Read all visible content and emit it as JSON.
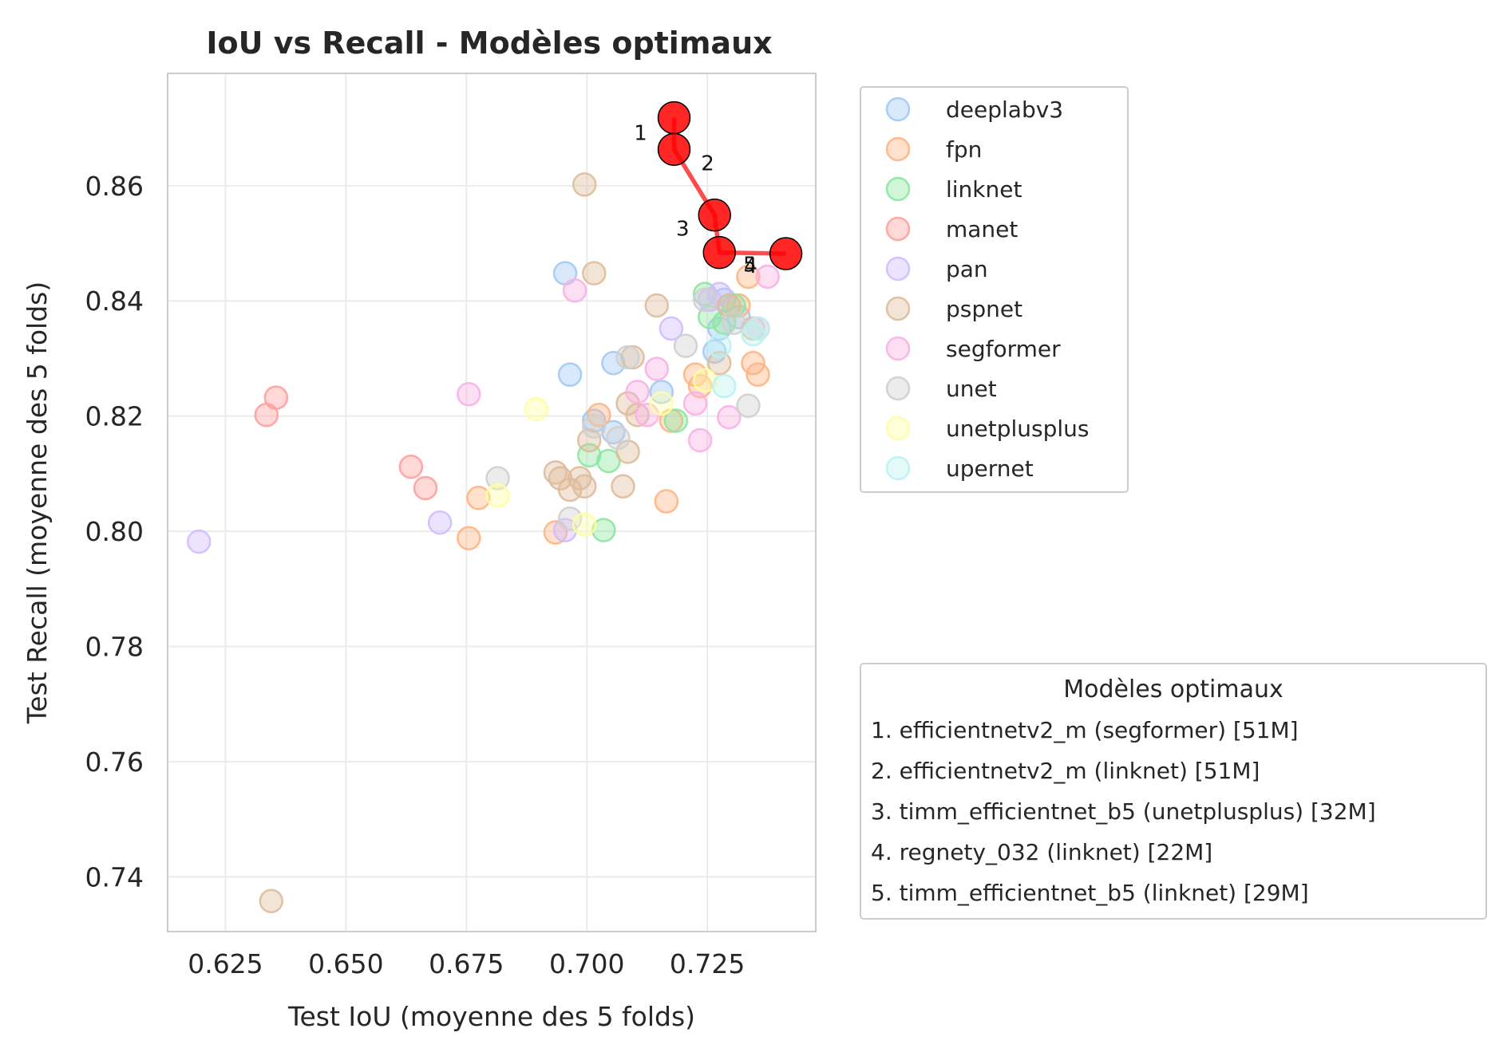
{
  "chart_data": {
    "type": "scatter",
    "title": "IoU vs Recall - Modèles optimaux",
    "xlabel": "Test IoU (moyenne des 5 folds)",
    "ylabel": "Test Recall (moyenne des 5 folds)",
    "xlim": [
      0.613,
      0.7475
    ],
    "ylim": [
      0.7305,
      0.8795
    ],
    "xticks": [
      "0.625",
      "0.650",
      "0.675",
      "0.700",
      "0.725"
    ],
    "yticks": [
      "0.74",
      "0.76",
      "0.78",
      "0.80",
      "0.82",
      "0.84",
      "0.86"
    ],
    "grid": true,
    "legend_position": "upper-right-outside",
    "series": [
      {
        "name": "deeplabv3",
        "color": "#a1c9f4",
        "points": [
          [
            0.6955,
            0.8448
          ],
          [
            0.6965,
            0.8272
          ],
          [
            0.7055,
            0.8292
          ],
          [
            0.7055,
            0.8172
          ],
          [
            0.7155,
            0.8242
          ],
          [
            0.7265,
            0.8312
          ],
          [
            0.7285,
            0.8402
          ],
          [
            0.7315,
            0.8372
          ],
          [
            0.7015,
            0.8192
          ],
          [
            0.7275,
            0.8352
          ]
        ]
      },
      {
        "name": "fpn",
        "color": "#ffb482",
        "points": [
          [
            0.6755,
            0.7988
          ],
          [
            0.6775,
            0.8058
          ],
          [
            0.6935,
            0.7998
          ],
          [
            0.7025,
            0.8202
          ],
          [
            0.7165,
            0.8052
          ],
          [
            0.7225,
            0.8272
          ],
          [
            0.7235,
            0.8252
          ],
          [
            0.7335,
            0.8442
          ],
          [
            0.7345,
            0.8292
          ],
          [
            0.7355,
            0.8272
          ],
          [
            0.7315,
            0.8392
          ],
          [
            0.7175,
            0.8192
          ]
        ]
      },
      {
        "name": "linknet",
        "color": "#8de5a1",
        "points": [
          [
            0.7035,
            0.8002
          ],
          [
            0.7045,
            0.8122
          ],
          [
            0.7005,
            0.8132
          ],
          [
            0.7185,
            0.8192
          ],
          [
            0.7245,
            0.8412
          ],
          [
            0.7255,
            0.8372
          ],
          [
            0.7305,
            0.8392
          ],
          [
            0.7285,
            0.8362
          ]
        ]
      },
      {
        "name": "manet",
        "color": "#ff9f9b",
        "points": [
          [
            0.6335,
            0.8202
          ],
          [
            0.6355,
            0.8232
          ],
          [
            0.6635,
            0.8112
          ],
          [
            0.6665,
            0.8075
          ]
        ]
      },
      {
        "name": "pan",
        "color": "#d0bbff",
        "points": [
          [
            0.6195,
            0.7982
          ],
          [
            0.6695,
            0.8015
          ],
          [
            0.6955,
            0.8002
          ],
          [
            0.7175,
            0.8352
          ],
          [
            0.7255,
            0.8402
          ],
          [
            0.7275,
            0.8412
          ]
        ]
      },
      {
        "name": "pspnet",
        "color": "#debb9b",
        "points": [
          [
            0.6345,
            0.7358
          ],
          [
            0.6995,
            0.8602
          ],
          [
            0.7015,
            0.8448
          ],
          [
            0.7145,
            0.8392
          ],
          [
            0.6935,
            0.8102
          ],
          [
            0.6945,
            0.8092
          ],
          [
            0.6965,
            0.8072
          ],
          [
            0.6985,
            0.8092
          ],
          [
            0.6995,
            0.8078
          ],
          [
            0.7005,
            0.8158
          ],
          [
            0.7075,
            0.8078
          ],
          [
            0.7085,
            0.8138
          ],
          [
            0.7085,
            0.8222
          ],
          [
            0.7095,
            0.8302
          ],
          [
            0.7105,
            0.8202
          ],
          [
            0.7275,
            0.8292
          ],
          [
            0.7295,
            0.8392
          ],
          [
            0.7345,
            0.8352
          ]
        ]
      },
      {
        "name": "segformer",
        "color": "#fab0e4",
        "points": [
          [
            0.6755,
            0.8238
          ],
          [
            0.6975,
            0.8418
          ],
          [
            0.7145,
            0.8282
          ],
          [
            0.7105,
            0.8242
          ],
          [
            0.7125,
            0.8202
          ],
          [
            0.7225,
            0.8222
          ],
          [
            0.7235,
            0.8158
          ],
          [
            0.7295,
            0.8198
          ],
          [
            0.7375,
            0.8442
          ],
          [
            0.7355,
            0.8352
          ]
        ]
      },
      {
        "name": "unet",
        "color": "#cfcfcf",
        "points": [
          [
            0.6815,
            0.8092
          ],
          [
            0.6965,
            0.8022
          ],
          [
            0.7015,
            0.8182
          ],
          [
            0.7065,
            0.8162
          ],
          [
            0.7085,
            0.8302
          ],
          [
            0.7205,
            0.8322
          ],
          [
            0.7245,
            0.8402
          ],
          [
            0.7305,
            0.8362
          ],
          [
            0.7335,
            0.8218
          ]
        ]
      },
      {
        "name": "unetplusplus",
        "color": "#fffea3",
        "points": [
          [
            0.6815,
            0.8062
          ],
          [
            0.6895,
            0.8212
          ],
          [
            0.6995,
            0.8012
          ],
          [
            0.7155,
            0.8222
          ],
          [
            0.7245,
            0.8262
          ]
        ]
      },
      {
        "name": "upernet",
        "color": "#b9f2f0",
        "points": [
          [
            0.7285,
            0.8252
          ],
          [
            0.7345,
            0.8342
          ],
          [
            0.7355,
            0.8352
          ],
          [
            0.7275,
            0.8322
          ]
        ]
      }
    ],
    "pareto": {
      "color": "#ff0000",
      "points": [
        {
          "rank": "1",
          "x": 0.7181,
          "y": 0.8718
        },
        {
          "rank": "2",
          "x": 0.7181,
          "y": 0.8663
        },
        {
          "rank": "3",
          "x": 0.7265,
          "y": 0.8549
        },
        {
          "rank": "4",
          "x": 0.7413,
          "y": 0.8482
        },
        {
          "rank": "5",
          "x": 0.7275,
          "y": 0.8484
        }
      ],
      "path": [
        [
          0.7181,
          0.8718
        ],
        [
          0.7181,
          0.8663
        ],
        [
          0.7265,
          0.8549
        ],
        [
          0.7275,
          0.8484
        ],
        [
          0.7413,
          0.8482
        ]
      ]
    },
    "optimal_models": {
      "title": "Modèles optimaux",
      "items": [
        "1. efficientnetv2_m (segformer) [51M]",
        "2. efficientnetv2_m (linknet) [51M]",
        "3. timm_efficientnet_b5 (unetplusplus) [32M]",
        "4. regnety_032 (linknet) [22M]",
        "5. timm_efficientnet_b5 (linknet) [29M]"
      ]
    }
  }
}
